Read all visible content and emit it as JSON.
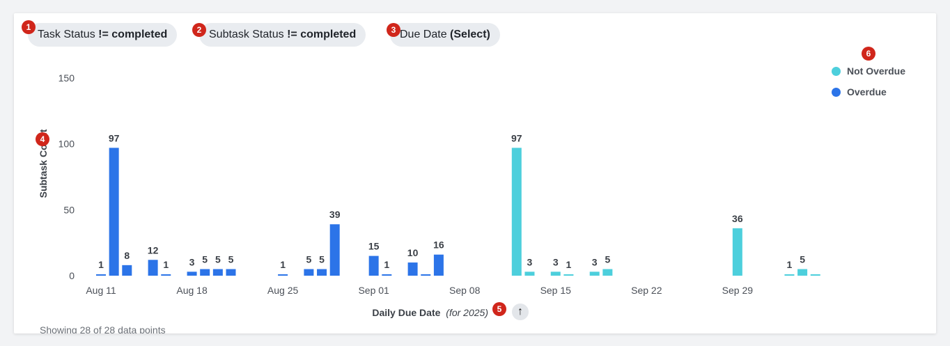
{
  "filters": [
    {
      "name": "Task Status",
      "op": "!=",
      "value": "completed",
      "badge": "1"
    },
    {
      "name": "Subtask Status",
      "op": "!=",
      "value": "completed",
      "badge": "2"
    },
    {
      "name": "Due Date",
      "op": "",
      "value": "(Select)",
      "badge": "3"
    }
  ],
  "badges": {
    "ylabel": "4",
    "xlabel": "5",
    "legend": "6"
  },
  "footer": {
    "note": "Showing 28 of 28 data points"
  },
  "sort_icon": "arrow-up-icon",
  "sort_glyph": "↑",
  "colors": {
    "overdue": "#2c74e8",
    "not_overdue": "#4dcfdc",
    "badge": "#d0261b"
  },
  "chart_data": {
    "type": "bar",
    "x_axis_type": "date",
    "xlabel": "Daily Due Date",
    "xlabel_suffix": "(for 2025)",
    "ylabel": "Subtask Count",
    "ylim": [
      0,
      150
    ],
    "yticks": [
      0,
      50,
      100,
      150
    ],
    "xticks": [
      "Aug 11",
      "Aug 18",
      "Aug 25",
      "Sep 01",
      "Sep 08",
      "Sep 15",
      "Sep 22",
      "Sep 29"
    ],
    "xtick_dates": [
      "2025-08-11",
      "2025-08-18",
      "2025-08-25",
      "2025-09-01",
      "2025-09-08",
      "2025-09-15",
      "2025-09-22",
      "2025-09-29"
    ],
    "legend_position": "top-right",
    "series": [
      {
        "name": "Not Overdue",
        "color": "#4dcfdc",
        "points": [
          {
            "date": "2025-09-12",
            "value": 97
          },
          {
            "date": "2025-09-13",
            "value": 3
          },
          {
            "date": "2025-09-15",
            "value": 3
          },
          {
            "date": "2025-09-16",
            "value": 1
          },
          {
            "date": "2025-09-18",
            "value": 3
          },
          {
            "date": "2025-09-19",
            "value": 5
          },
          {
            "date": "2025-09-29",
            "value": 36
          },
          {
            "date": "2025-10-03",
            "value": 1
          },
          {
            "date": "2025-10-04",
            "value": 5
          },
          {
            "date": "2025-10-05",
            "value": 1,
            "label": false
          }
        ]
      },
      {
        "name": "Overdue",
        "color": "#2c74e8",
        "points": [
          {
            "date": "2025-08-11",
            "value": 1
          },
          {
            "date": "2025-08-12",
            "value": 97
          },
          {
            "date": "2025-08-13",
            "value": 8
          },
          {
            "date": "2025-08-15",
            "value": 12
          },
          {
            "date": "2025-08-16",
            "value": 1
          },
          {
            "date": "2025-08-18",
            "value": 3
          },
          {
            "date": "2025-08-19",
            "value": 5
          },
          {
            "date": "2025-08-20",
            "value": 5
          },
          {
            "date": "2025-08-21",
            "value": 5
          },
          {
            "date": "2025-08-25",
            "value": 1
          },
          {
            "date": "2025-08-27",
            "value": 5
          },
          {
            "date": "2025-08-28",
            "value": 5
          },
          {
            "date": "2025-08-29",
            "value": 39
          },
          {
            "date": "2025-09-01",
            "value": 15
          },
          {
            "date": "2025-09-02",
            "value": 1
          },
          {
            "date": "2025-09-04",
            "value": 10
          },
          {
            "date": "2025-09-05",
            "value": 1,
            "label": false
          },
          {
            "date": "2025-09-06",
            "value": 16
          }
        ]
      }
    ]
  }
}
